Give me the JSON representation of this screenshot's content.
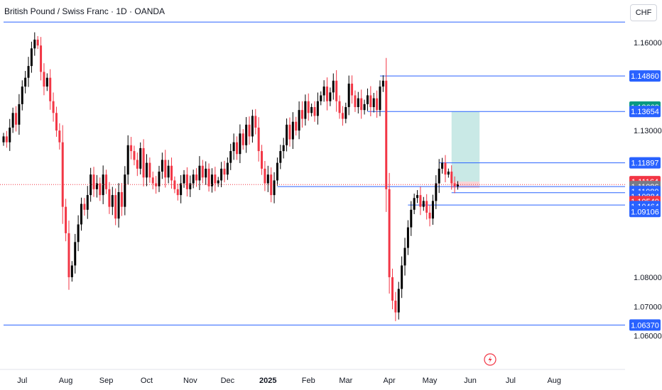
{
  "header": {
    "title": "British Pound / Swiss Franc · 1D · OANDA",
    "currency": "CHF"
  },
  "chart_data": {
    "type": "candlestick",
    "y_range": [
      1.0575,
      1.1675
    ],
    "price_ticks": [
      "1.16000",
      "1.13000",
      "1.08000",
      "1.07000",
      "1.06000"
    ],
    "x_labels": [
      {
        "label": "Jul",
        "i": 6
      },
      {
        "label": "Aug",
        "i": 20
      },
      {
        "label": "Sep",
        "i": 33
      },
      {
        "label": "Oct",
        "i": 46
      },
      {
        "label": "Nov",
        "i": 60
      },
      {
        "label": "Dec",
        "i": 72
      },
      {
        "label": "2025",
        "i": 85
      },
      {
        "label": "Feb",
        "i": 98
      },
      {
        "label": "Mar",
        "i": 110
      },
      {
        "label": "Apr",
        "i": 124
      },
      {
        "label": "May",
        "i": 137
      },
      {
        "label": "Jun",
        "i": 150
      },
      {
        "label": "Jul",
        "i": 163
      },
      {
        "label": "Aug",
        "i": 177
      }
    ],
    "closes": [
      1.128,
      1.126,
      1.131,
      1.136,
      1.132,
      1.139,
      1.145,
      1.148,
      1.152,
      1.158,
      1.161,
      1.159,
      1.15,
      1.145,
      1.148,
      1.14,
      1.136,
      1.13,
      1.126,
      1.104,
      1.095,
      1.08,
      1.084,
      1.092,
      1.098,
      1.105,
      1.103,
      1.108,
      1.115,
      1.11,
      1.112,
      1.108,
      1.115,
      1.11,
      1.104,
      1.108,
      1.1,
      1.109,
      1.104,
      1.115,
      1.125,
      1.123,
      1.12,
      1.117,
      1.124,
      1.114,
      1.119,
      1.114,
      1.112,
      1.111,
      1.116,
      1.12,
      1.114,
      1.118,
      1.113,
      1.11,
      1.108,
      1.112,
      1.115,
      1.11,
      1.112,
      1.115,
      1.113,
      1.118,
      1.114,
      1.117,
      1.111,
      1.115,
      1.112,
      1.113,
      1.117,
      1.115,
      1.119,
      1.123,
      1.126,
      1.122,
      1.129,
      1.125,
      1.132,
      1.128,
      1.135,
      1.131,
      1.123,
      1.117,
      1.112,
      1.115,
      1.108,
      1.113,
      1.119,
      1.123,
      1.125,
      1.132,
      1.127,
      1.133,
      1.13,
      1.137,
      1.134,
      1.14,
      1.136,
      1.138,
      1.135,
      1.14,
      1.142,
      1.145,
      1.14,
      1.143,
      1.147,
      1.14,
      1.136,
      1.134,
      1.138,
      1.146,
      1.142,
      1.138,
      1.141,
      1.137,
      1.139,
      1.142,
      1.138,
      1.141,
      1.137,
      1.145,
      1.147,
      1.11,
      1.08,
      1.072,
      1.068,
      1.076,
      1.084,
      1.09,
      1.097,
      1.103,
      1.107,
      1.108,
      1.104,
      1.106,
      1.102,
      1.1,
      1.106,
      1.112,
      1.117,
      1.119,
      1.115,
      1.116,
      1.112,
      1.111,
      1.1116
    ],
    "levels": [
      {
        "label": "1.16700",
        "price": 1.167,
        "i0": 0,
        "color": "#2962ff"
      },
      {
        "label": "1.14860",
        "price": 1.1486,
        "i0": 121,
        "color": "#2962ff"
      },
      {
        "label": "1.13654",
        "price": 1.1365,
        "i0": 117,
        "color": "#2962ff"
      },
      {
        "label": "1.11897",
        "price": 1.119,
        "i0": 140,
        "color": "#2962ff"
      },
      {
        "label": "1.11086",
        "price": 1.1109,
        "i0": 88,
        "color": "#2962ff"
      },
      {
        "label": "1.10884",
        "price": 1.1088,
        "i0": 144,
        "color": "#2962ff"
      },
      {
        "label": "1.10464",
        "price": 1.1046,
        "i0": 130,
        "color": "#2962ff"
      },
      {
        "label": "1.06370",
        "price": 1.0637,
        "i0": 0,
        "color": "#2962ff"
      }
    ],
    "badges": [
      {
        "label": "1.14860",
        "price": 1.1486,
        "color": "#2962ff"
      },
      {
        "label": "1.13663",
        "price": 1.138,
        "color": "#089981"
      },
      {
        "label": "1.13654",
        "price": 1.1365,
        "color": "#2962ff"
      },
      {
        "label": "1.11897",
        "price": 1.119,
        "color": "#2962ff"
      },
      {
        "label": "1.11164",
        "price": 1.1126,
        "color": "#f23645"
      },
      {
        "label": "1.11086",
        "price": 1.1109,
        "color": "#787b86"
      },
      {
        "label": "1.11080",
        "price": 1.1092,
        "color": "#2962ff"
      },
      {
        "label": "1.10884",
        "price": 1.1075,
        "color": "#2962ff"
      },
      {
        "label": "1.10540",
        "price": 1.1058,
        "color": "#f23645"
      },
      {
        "label": "1.10464",
        "price": 1.1041,
        "color": "#2962ff"
      },
      {
        "label": "1.09106",
        "price": 1.1024,
        "color": "#2962ff"
      },
      {
        "label": "1.06370",
        "price": 1.0637,
        "color": "#2962ff"
      }
    ],
    "position": {
      "entry": 1.1126,
      "target": 1.1365,
      "stop": 1.1104,
      "i0": 144,
      "i1": 153,
      "profit_color": "#b2dfdb",
      "loss_color": "#f8c8cc"
    },
    "current_price": 1.1116,
    "colors": {
      "up": "#000000",
      "down": "#f23645",
      "line": "#2962ff"
    }
  }
}
